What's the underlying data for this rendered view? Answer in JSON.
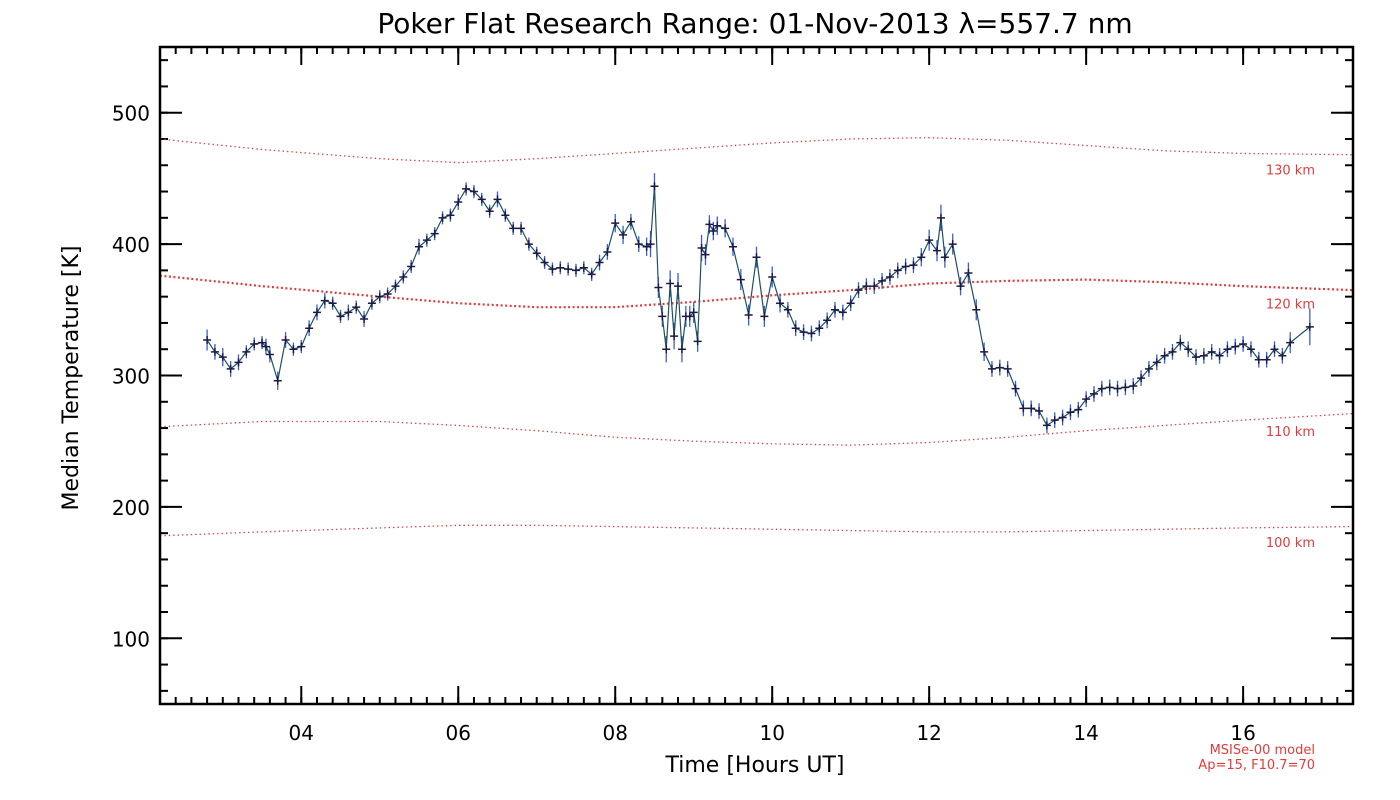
{
  "chart_data": {
    "type": "line",
    "title": "Poker Flat Research Range: 01-Nov-2013 λ=557.7 nm",
    "xlabel": "Time [Hours UT]",
    "ylabel": "Median Temperature [K]",
    "xlim": [
      2.2,
      17.4
    ],
    "ylim": [
      50,
      550
    ],
    "x_ticks": [
      4,
      6,
      8,
      10,
      12,
      14,
      16
    ],
    "x_tick_labels": [
      "04",
      "06",
      "08",
      "10",
      "12",
      "14",
      "16"
    ],
    "y_ticks": [
      100,
      200,
      300,
      400,
      500
    ],
    "y_tick_labels": [
      "100",
      "200",
      "300",
      "400",
      "500"
    ],
    "grid": false,
    "colors": {
      "data": "#1a1a4a",
      "errorbar": "#3a5fd0",
      "model": "#e03c3c",
      "line": "#1f5060"
    },
    "measured": {
      "name": "Median Temperature",
      "x": [
        2.8,
        2.9,
        3.0,
        3.1,
        3.2,
        3.3,
        3.4,
        3.5,
        3.55,
        3.6,
        3.7,
        3.8,
        3.9,
        4.0,
        4.1,
        4.2,
        4.3,
        4.4,
        4.5,
        4.6,
        4.7,
        4.8,
        4.9,
        5.0,
        5.1,
        5.2,
        5.3,
        5.4,
        5.5,
        5.6,
        5.7,
        5.8,
        5.9,
        6.0,
        6.1,
        6.2,
        6.3,
        6.4,
        6.5,
        6.6,
        6.7,
        6.8,
        6.9,
        7.0,
        7.1,
        7.2,
        7.3,
        7.4,
        7.5,
        7.6,
        7.7,
        7.8,
        7.9,
        8.0,
        8.1,
        8.2,
        8.3,
        8.4,
        8.45,
        8.5,
        8.55,
        8.6,
        8.65,
        8.7,
        8.75,
        8.8,
        8.85,
        8.9,
        8.95,
        9.0,
        9.05,
        9.1,
        9.15,
        9.2,
        9.25,
        9.3,
        9.4,
        9.5,
        9.6,
        9.7,
        9.8,
        9.9,
        10.0,
        10.1,
        10.2,
        10.3,
        10.4,
        10.5,
        10.6,
        10.7,
        10.8,
        10.9,
        11.0,
        11.1,
        11.2,
        11.3,
        11.4,
        11.5,
        11.6,
        11.7,
        11.8,
        11.9,
        12.0,
        12.1,
        12.15,
        12.2,
        12.3,
        12.4,
        12.5,
        12.6,
        12.7,
        12.8,
        12.9,
        13.0,
        13.1,
        13.2,
        13.3,
        13.4,
        13.5,
        13.6,
        13.7,
        13.8,
        13.9,
        14.0,
        14.1,
        14.2,
        14.3,
        14.4,
        14.5,
        14.6,
        14.7,
        14.8,
        14.9,
        15.0,
        15.1,
        15.2,
        15.3,
        15.4,
        15.5,
        15.6,
        15.7,
        15.8,
        15.9,
        16.0,
        16.1,
        16.2,
        16.3,
        16.4,
        16.5,
        16.6,
        16.85
      ],
      "y": [
        327,
        318,
        314,
        305,
        310,
        318,
        324,
        325,
        322,
        316,
        296,
        327,
        320,
        322,
        336,
        348,
        357,
        355,
        345,
        348,
        352,
        343,
        355,
        360,
        362,
        368,
        375,
        383,
        398,
        403,
        408,
        420,
        422,
        432,
        442,
        440,
        434,
        425,
        434,
        422,
        412,
        412,
        400,
        393,
        386,
        381,
        382,
        381,
        380,
        382,
        377,
        386,
        394,
        416,
        407,
        417,
        400,
        398,
        400,
        444,
        367,
        345,
        320,
        370,
        330,
        368,
        320,
        345,
        345,
        348,
        326,
        397,
        392,
        415,
        410,
        414,
        412,
        398,
        373,
        346,
        390,
        345,
        375,
        355,
        350,
        336,
        333,
        332,
        336,
        342,
        350,
        348,
        355,
        365,
        368,
        368,
        372,
        375,
        380,
        383,
        384,
        390,
        403,
        395,
        420,
        390,
        400,
        368,
        378,
        350,
        318,
        305,
        306,
        305,
        290,
        275,
        275,
        273,
        262,
        266,
        268,
        272,
        274,
        282,
        286,
        290,
        291,
        290,
        291,
        292,
        298,
        305,
        310,
        315,
        318,
        325,
        320,
        314,
        315,
        318,
        315,
        320,
        322,
        324,
        320,
        312,
        312,
        320,
        315,
        325,
        337
      ],
      "errors": [
        8,
        6,
        7,
        6,
        6,
        5,
        5,
        5,
        6,
        6,
        7,
        6,
        5,
        5,
        6,
        6,
        6,
        5,
        5,
        6,
        5,
        6,
        5,
        5,
        5,
        5,
        5,
        5,
        6,
        5,
        5,
        5,
        5,
        6,
        5,
        5,
        5,
        5,
        6,
        5,
        5,
        5,
        5,
        5,
        5,
        5,
        5,
        5,
        5,
        5,
        5,
        6,
        6,
        7,
        7,
        6,
        6,
        7,
        10,
        10,
        8,
        8,
        10,
        10,
        10,
        10,
        10,
        8,
        8,
        8,
        8,
        10,
        8,
        7,
        7,
        7,
        7,
        7,
        8,
        8,
        8,
        8,
        8,
        7,
        6,
        6,
        6,
        6,
        6,
        6,
        6,
        6,
        6,
        6,
        6,
        6,
        6,
        6,
        6,
        6,
        6,
        7,
        8,
        8,
        10,
        8,
        8,
        7,
        8,
        8,
        7,
        6,
        6,
        6,
        6,
        6,
        6,
        6,
        6,
        6,
        6,
        6,
        6,
        6,
        6,
        6,
        6,
        6,
        6,
        6,
        6,
        6,
        6,
        6,
        6,
        6,
        6,
        6,
        6,
        6,
        6,
        6,
        6,
        6,
        6,
        6,
        6,
        6,
        6,
        8,
        14
      ]
    },
    "model_series": [
      {
        "name": "130 km",
        "x": [
          2.2,
          3.5,
          5.0,
          6.0,
          7.0,
          8.0,
          9.0,
          10.0,
          11.0,
          12.0,
          13.0,
          14.0,
          15.0,
          16.0,
          17.4
        ],
        "values": [
          480,
          472,
          465,
          462,
          465,
          469,
          473,
          477,
          480,
          481,
          479,
          475,
          471,
          469,
          468
        ]
      },
      {
        "name": "120 km",
        "x": [
          2.2,
          3.5,
          5.0,
          6.0,
          7.0,
          8.0,
          9.0,
          10.0,
          11.0,
          12.0,
          13.0,
          14.0,
          15.0,
          16.0,
          17.4
        ],
        "values": [
          376,
          368,
          360,
          355,
          352,
          352,
          356,
          361,
          365,
          370,
          372,
          373,
          371,
          368,
          365
        ]
      },
      {
        "name": "110 km",
        "x": [
          2.2,
          3.5,
          5.0,
          6.0,
          7.0,
          8.0,
          9.0,
          10.0,
          11.0,
          12.0,
          13.0,
          14.0,
          15.0,
          16.0,
          17.4
        ],
        "values": [
          261,
          265,
          265,
          262,
          258,
          253,
          250,
          248,
          247,
          249,
          253,
          258,
          262,
          266,
          271
        ]
      },
      {
        "name": "100 km",
        "x": [
          2.2,
          3.5,
          5.0,
          6.0,
          7.0,
          8.0,
          9.0,
          10.0,
          11.0,
          12.0,
          13.0,
          14.0,
          15.0,
          16.0,
          17.4
        ],
        "values": [
          178,
          181,
          184,
          186,
          186,
          185,
          184,
          183,
          182,
          181,
          181,
          182,
          183,
          184,
          185
        ]
      }
    ],
    "model_note": [
      "MSISe-00 model",
      "Ap=15, F10.7=70"
    ]
  }
}
